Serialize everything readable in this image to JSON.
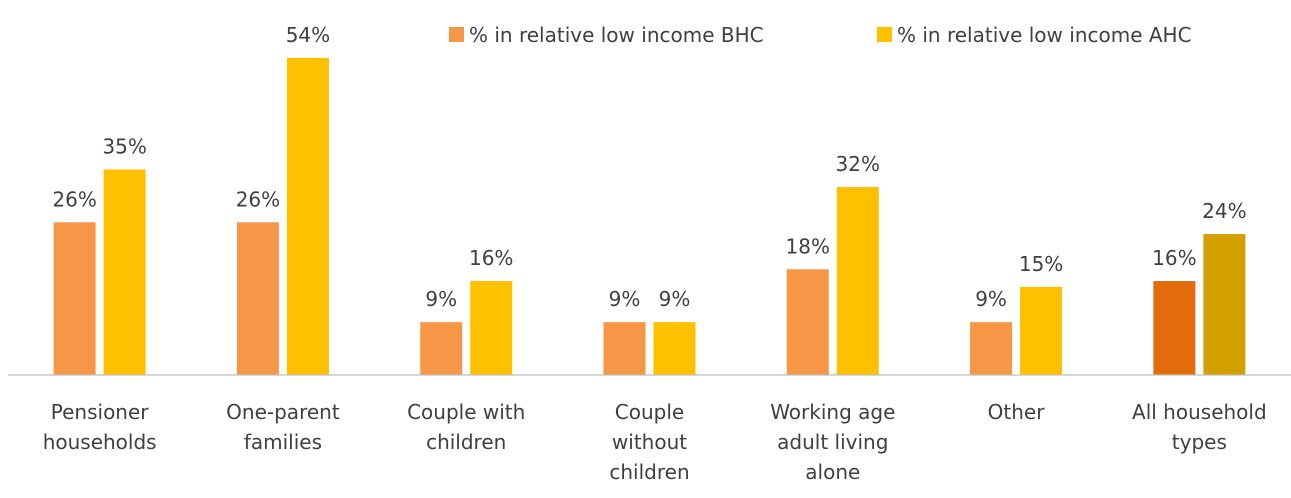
{
  "chart_data": {
    "type": "bar",
    "categories": [
      [
        "Pensioner",
        "households"
      ],
      [
        "One-parent",
        "families"
      ],
      [
        "Couple with",
        "children"
      ],
      [
        "Couple",
        "without",
        "children"
      ],
      [
        "Working age",
        "adult living",
        "alone"
      ],
      [
        "Other"
      ],
      [
        "All household",
        "types"
      ]
    ],
    "series": [
      {
        "name": "% in relative low income BHC",
        "values": [
          26,
          26,
          9,
          9,
          18,
          9,
          16
        ],
        "labels": [
          "26%",
          "26%",
          "9%",
          "9%",
          "18%",
          "9%",
          "16%"
        ],
        "color": "#F79646",
        "highlight_color": "#E36C0A"
      },
      {
        "name": "% in relative low income AHC",
        "values": [
          35,
          54,
          16,
          9,
          32,
          15,
          24
        ],
        "labels": [
          "35%",
          "54%",
          "16%",
          "9%",
          "32%",
          "15%",
          "24%"
        ],
        "color": "#FFC000",
        "highlight_color": "#D4A000"
      }
    ],
    "highlight_category_index": 6,
    "ylim": [
      0,
      55
    ],
    "legend_position": "top",
    "grid": false,
    "axis_color": "#BFBFBF"
  }
}
